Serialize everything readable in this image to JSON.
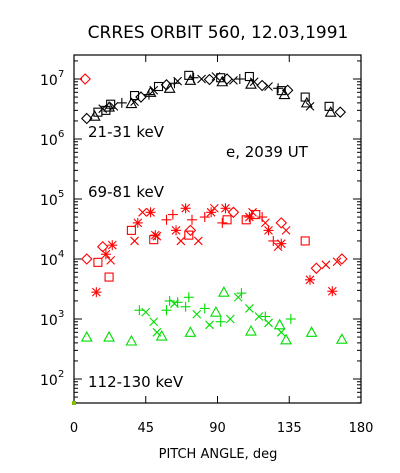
{
  "chart_data": {
    "type": "scatter",
    "title": "CRRES ORBIT 560, 12.03,1991",
    "xlabel": "PITCH ANGLE, deg",
    "ylabel": "",
    "xlim": [
      0,
      180
    ],
    "ylim_log10": [
      1.6,
      7.4
    ],
    "yscale": "log",
    "xticks": [
      0,
      45,
      90,
      135,
      180
    ],
    "yticks": [
      {
        "base": "10",
        "exp": "2",
        "value": 100
      },
      {
        "base": "10",
        "exp": "3",
        "value": 1000
      },
      {
        "base": "10",
        "exp": "4",
        "value": 10000
      },
      {
        "base": "10",
        "exp": "5",
        "value": 100000
      },
      {
        "base": "10",
        "exp": "6",
        "value": 1000000
      },
      {
        "base": "10",
        "exp": "7",
        "value": 10000000
      }
    ],
    "grid": false,
    "annotations": {
      "info": "e, 2039 UT"
    },
    "series": [
      {
        "name": "21-31 keV",
        "color": "#000000",
        "points": [
          {
            "m": "diamond",
            "x": 8,
            "y": 2200000
          },
          {
            "m": "triangle",
            "x": 13,
            "y": 2400000
          },
          {
            "m": "square",
            "x": 15,
            "y": 2800000
          },
          {
            "m": "x",
            "x": 18,
            "y": 3200000
          },
          {
            "m": "square",
            "x": 20,
            "y": 3000000
          },
          {
            "m": "triangle",
            "x": 22,
            "y": 3400000
          },
          {
            "m": "square",
            "x": 23,
            "y": 3800000
          },
          {
            "m": "x",
            "x": 25,
            "y": 3500000
          },
          {
            "m": "plus",
            "x": 30,
            "y": 4000000
          },
          {
            "m": "triangle",
            "x": 36,
            "y": 3900000
          },
          {
            "m": "x",
            "x": 38,
            "y": 4200000
          },
          {
            "m": "square",
            "x": 38,
            "y": 5300000
          },
          {
            "m": "diamond",
            "x": 42,
            "y": 5000000
          },
          {
            "m": "plus",
            "x": 47,
            "y": 5500000
          },
          {
            "m": "triangle",
            "x": 48,
            "y": 6000000
          },
          {
            "m": "x",
            "x": 50,
            "y": 6500000
          },
          {
            "m": "square",
            "x": 53,
            "y": 7500000
          },
          {
            "m": "diamond",
            "x": 58,
            "y": 8000000
          },
          {
            "m": "triangle",
            "x": 60,
            "y": 7000000
          },
          {
            "m": "plus",
            "x": 63,
            "y": 8500000
          },
          {
            "m": "x",
            "x": 65,
            "y": 9200000
          },
          {
            "m": "square",
            "x": 72,
            "y": 11500000
          },
          {
            "m": "triangle",
            "x": 73,
            "y": 9500000
          },
          {
            "m": "plus",
            "x": 75,
            "y": 10500000
          },
          {
            "m": "x",
            "x": 80,
            "y": 10000000
          },
          {
            "m": "diamond",
            "x": 85,
            "y": 9800000
          },
          {
            "m": "x",
            "x": 89,
            "y": 11000000
          },
          {
            "m": "square",
            "x": 92,
            "y": 10500000
          },
          {
            "m": "triangle",
            "x": 93,
            "y": 9000000
          },
          {
            "m": "diamond",
            "x": 96,
            "y": 10000000
          },
          {
            "m": "x",
            "x": 100,
            "y": 9500000
          },
          {
            "m": "plus",
            "x": 104,
            "y": 10000000
          },
          {
            "m": "square",
            "x": 110,
            "y": 11000000
          },
          {
            "m": "triangle",
            "x": 111,
            "y": 8200000
          },
          {
            "m": "x",
            "x": 113,
            "y": 9000000
          },
          {
            "m": "diamond",
            "x": 118,
            "y": 7800000
          },
          {
            "m": "x",
            "x": 122,
            "y": 7500000
          },
          {
            "m": "plus",
            "x": 128,
            "y": 7000000
          },
          {
            "m": "square",
            "x": 130,
            "y": 6400000
          },
          {
            "m": "triangle",
            "x": 132,
            "y": 5500000
          },
          {
            "m": "diamond",
            "x": 134,
            "y": 6500000
          },
          {
            "m": "square",
            "x": 145,
            "y": 5000000
          },
          {
            "m": "triangle",
            "x": 146,
            "y": 4000000
          },
          {
            "m": "x",
            "x": 148,
            "y": 3500000
          },
          {
            "m": "square",
            "x": 160,
            "y": 3500000
          },
          {
            "m": "triangle",
            "x": 161,
            "y": 2800000
          },
          {
            "m": "diamond",
            "x": 167,
            "y": 2800000
          }
        ]
      },
      {
        "name": "69-81 keV",
        "color": "#ff0000",
        "points": [
          {
            "m": "diamond",
            "x": 7,
            "y": 10000000
          },
          {
            "m": "diamond",
            "x": 8,
            "y": 10000
          },
          {
            "m": "star",
            "x": 14,
            "y": 2800
          },
          {
            "m": "square",
            "x": 15,
            "y": 8800
          },
          {
            "m": "diamond",
            "x": 18,
            "y": 16000
          },
          {
            "m": "star",
            "x": 20,
            "y": 12000
          },
          {
            "m": "square",
            "x": 22,
            "y": 5000
          },
          {
            "m": "x",
            "x": 23,
            "y": 9500
          },
          {
            "m": "star",
            "x": 24,
            "y": 17000
          },
          {
            "m": "square",
            "x": 36,
            "y": 30000
          },
          {
            "m": "x",
            "x": 38,
            "y": 20000
          },
          {
            "m": "star",
            "x": 40,
            "y": 40000
          },
          {
            "m": "x",
            "x": 43,
            "y": 60000
          },
          {
            "m": "star",
            "x": 48,
            "y": 60000
          },
          {
            "m": "square",
            "x": 50,
            "y": 21000
          },
          {
            "m": "star",
            "x": 51,
            "y": 25000
          },
          {
            "m": "x",
            "x": 52,
            "y": 24000
          },
          {
            "m": "plus",
            "x": 58,
            "y": 45000
          },
          {
            "m": "plus",
            "x": 62,
            "y": 55000
          },
          {
            "m": "star",
            "x": 64,
            "y": 30000
          },
          {
            "m": "x",
            "x": 67,
            "y": 20000
          },
          {
            "m": "star",
            "x": 70,
            "y": 70000
          },
          {
            "m": "square",
            "x": 72,
            "y": 25000
          },
          {
            "m": "plus",
            "x": 74,
            "y": 45000
          },
          {
            "m": "diamond",
            "x": 73,
            "y": 30000
          },
          {
            "m": "x",
            "x": 78,
            "y": 20000
          },
          {
            "m": "plus",
            "x": 82,
            "y": 50000
          },
          {
            "m": "star",
            "x": 86,
            "y": 60000
          },
          {
            "m": "x",
            "x": 88,
            "y": 70000
          },
          {
            "m": "plus",
            "x": 93,
            "y": 40000
          },
          {
            "m": "star",
            "x": 95,
            "y": 70000
          },
          {
            "m": "square",
            "x": 96,
            "y": 45000
          },
          {
            "m": "diamond",
            "x": 100,
            "y": 60000
          },
          {
            "m": "square",
            "x": 108,
            "y": 45000
          },
          {
            "m": "star",
            "x": 110,
            "y": 50000
          },
          {
            "m": "x",
            "x": 112,
            "y": 60000
          },
          {
            "m": "square",
            "x": 114,
            "y": 55000
          },
          {
            "m": "plus",
            "x": 118,
            "y": 50000
          },
          {
            "m": "x",
            "x": 120,
            "y": 40000
          },
          {
            "m": "star",
            "x": 122,
            "y": 30000
          },
          {
            "m": "plus",
            "x": 125,
            "y": 20000
          },
          {
            "m": "x",
            "x": 128,
            "y": 16000
          },
          {
            "m": "diamond",
            "x": 130,
            "y": 40000
          },
          {
            "m": "star",
            "x": 130,
            "y": 18000
          },
          {
            "m": "x",
            "x": 133,
            "y": 30000
          },
          {
            "m": "square",
            "x": 145,
            "y": 20000
          },
          {
            "m": "star",
            "x": 148,
            "y": 4500
          },
          {
            "m": "diamond",
            "x": 152,
            "y": 7000
          },
          {
            "m": "x",
            "x": 158,
            "y": 8000
          },
          {
            "m": "star",
            "x": 162,
            "y": 2900
          },
          {
            "m": "x",
            "x": 165,
            "y": 9000
          },
          {
            "m": "diamond",
            "x": 168,
            "y": 10000
          }
        ]
      },
      {
        "name": "112-130 keV",
        "color": "#00dd00",
        "points": [
          {
            "m": "triangle",
            "x": 8,
            "y": 500
          },
          {
            "m": "triangle",
            "x": 22,
            "y": 500
          },
          {
            "m": "triangle",
            "x": 36,
            "y": 430
          },
          {
            "m": "plus",
            "x": 41,
            "y": 1400
          },
          {
            "m": "x",
            "x": 45,
            "y": 1300
          },
          {
            "m": "x",
            "x": 50,
            "y": 900
          },
          {
            "m": "x",
            "x": 52,
            "y": 600
          },
          {
            "m": "triangle",
            "x": 55,
            "y": 520
          },
          {
            "m": "plus",
            "x": 58,
            "y": 1400
          },
          {
            "m": "plus",
            "x": 60,
            "y": 2000
          },
          {
            "m": "x",
            "x": 63,
            "y": 1800
          },
          {
            "m": "plus",
            "x": 65,
            "y": 1900
          },
          {
            "m": "plus",
            "x": 70,
            "y": 1600
          },
          {
            "m": "plus",
            "x": 72,
            "y": 2300
          },
          {
            "m": "x",
            "x": 77,
            "y": 1200
          },
          {
            "m": "triangle",
            "x": 73,
            "y": 600
          },
          {
            "m": "plus",
            "x": 82,
            "y": 1500
          },
          {
            "m": "x",
            "x": 85,
            "y": 800
          },
          {
            "m": "triangle",
            "x": 89,
            "y": 1300
          },
          {
            "m": "plus",
            "x": 92,
            "y": 900
          },
          {
            "m": "triangle",
            "x": 94,
            "y": 2800
          },
          {
            "m": "x",
            "x": 98,
            "y": 1000
          },
          {
            "m": "x",
            "x": 103,
            "y": 2300
          },
          {
            "m": "plus",
            "x": 105,
            "y": 2700
          },
          {
            "m": "x",
            "x": 110,
            "y": 1500
          },
          {
            "m": "triangle",
            "x": 111,
            "y": 630
          },
          {
            "m": "x",
            "x": 116,
            "y": 1100
          },
          {
            "m": "plus",
            "x": 120,
            "y": 1100
          },
          {
            "m": "x",
            "x": 122,
            "y": 860
          },
          {
            "m": "triangle",
            "x": 129,
            "y": 800
          },
          {
            "m": "x",
            "x": 130,
            "y": 600
          },
          {
            "m": "triangle",
            "x": 133,
            "y": 450
          },
          {
            "m": "plus",
            "x": 136,
            "y": 1000
          },
          {
            "m": "triangle",
            "x": 149,
            "y": 600
          },
          {
            "m": "triangle",
            "x": 168,
            "y": 460
          }
        ]
      }
    ]
  }
}
